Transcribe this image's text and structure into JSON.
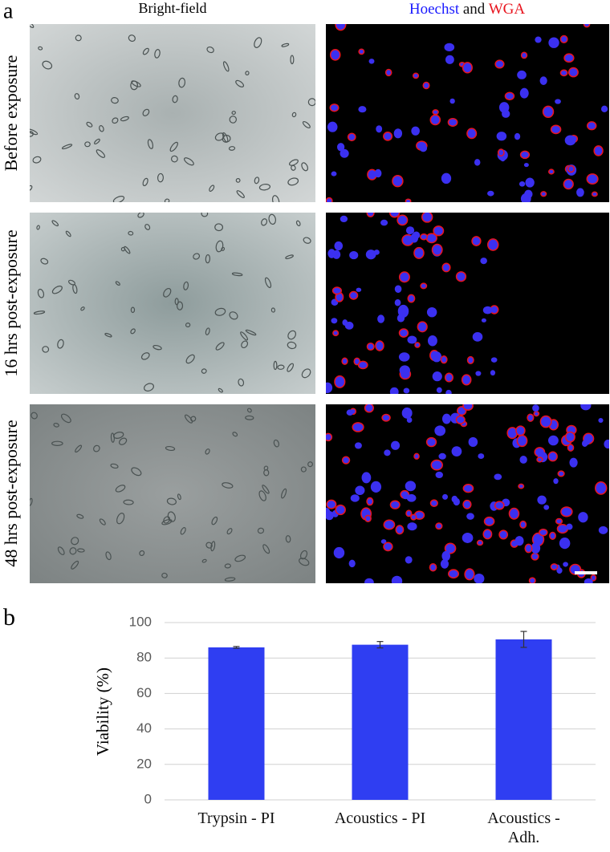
{
  "panel_a": {
    "label": "a",
    "column_headers": {
      "bright_field": "Bright-field",
      "fluorescence": [
        "Hoechst",
        "and",
        "WGA"
      ]
    },
    "row_labels": [
      "Before exposure",
      "16 hrs post-exposure",
      "48 hrs post-exposure"
    ]
  },
  "panel_b": {
    "label": "b"
  },
  "chart_data": {
    "type": "bar",
    "ylabel": "Viability (%)",
    "categories": [
      "Trypsin - PI",
      "Acoustics - PI",
      "Acoustics - Adh."
    ],
    "values": [
      86,
      87.5,
      90.5
    ],
    "errors": [
      0.5,
      1.8,
      4.5
    ],
    "color": "#2f3ef2",
    "ylim": [
      0,
      100
    ],
    "yticks": [
      0,
      20,
      40,
      60,
      80,
      100
    ],
    "grid": true
  }
}
